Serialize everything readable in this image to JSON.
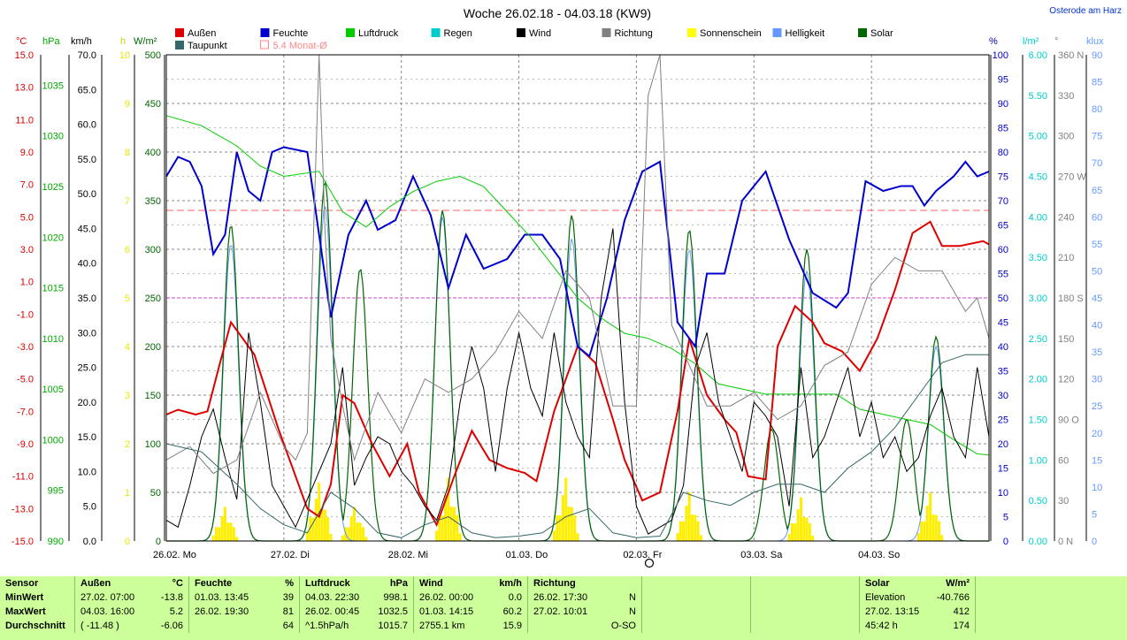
{
  "chart_data": {
    "type": "line",
    "title": "Woche 26.02.18 - 04.03.18 (KW9)",
    "location": "Osterode am Harz",
    "x_labels": [
      "26.02.  Mo",
      "27.02.  Di",
      "28.02.  Mi",
      "01.03.  Do",
      "02.03.  Fr",
      "03.03.  Sa",
      "04.03.  So"
    ],
    "legend": [
      {
        "name": "Außen",
        "color": "#dd0000"
      },
      {
        "name": "Feuchte",
        "color": "#0000cc"
      },
      {
        "name": "Luftdruck",
        "color": "#00cc00"
      },
      {
        "name": "Regen",
        "color": "#00cccc"
      },
      {
        "name": "Wind",
        "color": "#000000"
      },
      {
        "name": "Richtung",
        "color": "#808080"
      },
      {
        "name": "Sonnenschein",
        "color": "#ffff00"
      },
      {
        "name": "Helligkeit",
        "color": "#6699ff"
      },
      {
        "name": "Solar",
        "color": "#006600"
      },
      {
        "name": "Taupunkt",
        "color": "#336666"
      },
      {
        "name": "5.4 Monat-Ø",
        "color": "#ff8888"
      }
    ],
    "axes": {
      "temp_c": {
        "unit": "°C",
        "color": "#dd0000",
        "ylim": [
          -15,
          15
        ],
        "ticks": [
          "15.0",
          "13.0",
          "11.0",
          "9.0",
          "7.0",
          "5.0",
          "3.0",
          "1.0",
          "-1.0",
          "-3.0",
          "-5.0",
          "-7.0",
          "-9.0",
          "-11.0",
          "-13.0",
          "-15.0"
        ]
      },
      "pressure_hpa": {
        "unit": "hPa",
        "color": "#00aa00",
        "ticks": [
          "1035",
          "1030",
          "1025",
          "1020",
          "1015",
          "1010",
          "1005",
          "1000",
          "995",
          "990"
        ]
      },
      "wind_kmh": {
        "unit": "km/h",
        "color": "#000000",
        "ylim": [
          0,
          70
        ],
        "ticks": [
          "70.0",
          "65.0",
          "60.0",
          "55.0",
          "50.0",
          "45.0",
          "40.0",
          "35.0",
          "30.0",
          "25.0",
          "20.0",
          "15.0",
          "10.0",
          "5.0",
          "0.0"
        ]
      },
      "sun_h": {
        "unit": "h",
        "color": "#e8e800",
        "ylim": [
          0,
          10
        ],
        "ticks": [
          "10",
          "9",
          "8",
          "7",
          "6",
          "5",
          "4",
          "3",
          "2",
          "1",
          "0"
        ]
      },
      "solar_wm2": {
        "unit": "W/m²",
        "color": "#006600",
        "ylim": [
          0,
          500
        ],
        "ticks": [
          "500",
          "450",
          "400",
          "350",
          "300",
          "250",
          "200",
          "150",
          "100",
          "50",
          "0"
        ]
      },
      "humidity_pct": {
        "unit": "%",
        "color": "#0000cc",
        "ylim": [
          0,
          100
        ],
        "ticks": [
          "100",
          "95",
          "90",
          "85",
          "80",
          "75",
          "70",
          "65",
          "60",
          "55",
          "50",
          "45",
          "40",
          "35",
          "30",
          "25",
          "20",
          "15",
          "10",
          "5",
          "0"
        ]
      },
      "rain_lm2": {
        "unit": "l/m²",
        "color": "#00cccc",
        "ylim": [
          0,
          6
        ],
        "ticks": [
          "6.00",
          "5.50",
          "5.00",
          "4.50",
          "4.00",
          "3.50",
          "3.00",
          "2.50",
          "2.00",
          "1.50",
          "1.00",
          "0.50",
          "0.00"
        ]
      },
      "direction_deg": {
        "unit": "°",
        "color": "#808080",
        "ylim": [
          0,
          360
        ],
        "ticks": [
          "360 N",
          "330",
          "300",
          "270 W",
          "240",
          "210",
          "180 S",
          "150",
          "120",
          "90  O",
          "60",
          "30",
          "0 N"
        ]
      },
      "klux": {
        "unit": "klux",
        "color": "#6699ff",
        "ylim": [
          0,
          90
        ],
        "ticks": [
          "90",
          "85",
          "80",
          "75",
          "70",
          "65",
          "60",
          "55",
          "50",
          "45",
          "40",
          "35",
          "30",
          "25",
          "20",
          "15",
          "10",
          "5",
          "0"
        ]
      }
    },
    "series": [
      {
        "name": "Außen",
        "unit": "°C",
        "x_days": [
          0,
          0.1,
          0.25,
          0.35,
          0.45,
          0.55,
          0.75,
          0.95,
          1.1,
          1.2,
          1.3,
          1.4,
          1.5,
          1.6,
          1.75,
          1.9,
          2.05,
          2.15,
          2.3,
          2.45,
          2.6,
          2.75,
          2.9,
          3.05,
          3.15,
          3.3,
          3.5,
          3.65,
          3.8,
          3.9,
          4.05,
          4.2,
          4.35,
          4.45,
          4.6,
          4.75,
          4.85,
          4.95,
          5.1,
          5.2,
          5.35,
          5.5,
          5.6,
          5.75,
          5.9,
          6.05,
          6.2,
          6.35,
          6.5,
          6.6,
          6.75,
          6.95,
          7.0
        ],
        "values": [
          -7.2,
          -6.9,
          -7.2,
          -7.0,
          -4.2,
          -1.5,
          -3.5,
          -8.0,
          -11.0,
          -13.0,
          -13.5,
          -11.5,
          -6.0,
          -6.5,
          -9.0,
          -11.0,
          -9.0,
          -12.0,
          -14.0,
          -11.0,
          -8.2,
          -10.0,
          -10.5,
          -10.8,
          -11.3,
          -7.0,
          -3.0,
          -4.0,
          -7.5,
          -10.0,
          -12.5,
          -12.0,
          -7.0,
          -2.5,
          -6.0,
          -7.5,
          -8.3,
          -11.0,
          -11.2,
          -3.0,
          -0.5,
          -1.5,
          -2.8,
          -3.3,
          -4.5,
          -2.5,
          0.5,
          4.0,
          4.7,
          3.2,
          3.2,
          3.5,
          3.3
        ]
      },
      {
        "name": "Feuchte",
        "unit": "%",
        "x_days": [
          0,
          0.1,
          0.2,
          0.3,
          0.4,
          0.5,
          0.6,
          0.7,
          0.8,
          0.9,
          1.0,
          1.2,
          1.4,
          1.55,
          1.7,
          1.8,
          1.95,
          2.1,
          2.25,
          2.4,
          2.55,
          2.7,
          2.9,
          3.05,
          3.2,
          3.35,
          3.5,
          3.6,
          3.75,
          3.9,
          4.05,
          4.2,
          4.35,
          4.5,
          4.6,
          4.75,
          4.9,
          5.1,
          5.3,
          5.5,
          5.7,
          5.8,
          5.95,
          6.1,
          6.25,
          6.35,
          6.45,
          6.55,
          6.7,
          6.8,
          6.9,
          7.0
        ],
        "values": [
          75,
          79,
          78,
          73,
          59,
          63,
          80,
          72,
          70,
          80,
          81,
          80,
          46,
          63,
          70,
          64,
          66,
          75,
          67,
          52,
          63,
          56,
          58,
          63,
          63,
          58,
          40,
          38,
          50,
          66,
          76,
          78,
          45,
          40,
          55,
          55,
          70,
          76,
          62,
          51,
          48,
          51,
          74,
          72,
          73,
          73,
          69,
          72,
          75,
          78,
          75,
          76
        ]
      },
      {
        "name": "Luftdruck",
        "unit": "hPa",
        "x_days": [
          0,
          0.3,
          0.6,
          0.8,
          1.0,
          1.3,
          1.5,
          1.7,
          1.9,
          2.1,
          2.3,
          2.5,
          2.7,
          2.9,
          3.1,
          3.3,
          3.5,
          3.7,
          3.9,
          4.1,
          4.3,
          4.5,
          4.7,
          4.9,
          5.1,
          5.3,
          5.5,
          5.7,
          5.9,
          6.1,
          6.3,
          6.5,
          6.7,
          6.9,
          7.0
        ],
        "values": [
          1032.0,
          1031.0,
          1029.0,
          1027.0,
          1026.0,
          1026.5,
          1022.5,
          1021.0,
          1023.0,
          1024.5,
          1025.5,
          1026.0,
          1025.0,
          1022.5,
          1020.0,
          1017.0,
          1014.0,
          1012.0,
          1010.5,
          1010.0,
          1009.0,
          1007.5,
          1005.5,
          1005.0,
          1004.5,
          1004.5,
          1004.5,
          1004.5,
          1003.0,
          1002.5,
          1002.0,
          1001.5,
          1000.0,
          998.6,
          998.5
        ]
      },
      {
        "name": "Wind",
        "unit": "km/h",
        "x_days": [
          0,
          0.1,
          0.2,
          0.3,
          0.4,
          0.5,
          0.6,
          0.7,
          0.8,
          0.9,
          1.0,
          1.1,
          1.2,
          1.3,
          1.4,
          1.5,
          1.6,
          1.7,
          1.8,
          1.9,
          2.0,
          2.1,
          2.2,
          2.3,
          2.4,
          2.5,
          2.6,
          2.7,
          2.8,
          2.9,
          3.0,
          3.1,
          3.2,
          3.3,
          3.4,
          3.5,
          3.6,
          3.7,
          3.8,
          3.9,
          4.0,
          4.1,
          4.2,
          4.3,
          4.4,
          4.5,
          4.6,
          4.7,
          4.8,
          4.9,
          5.0,
          5.1,
          5.2,
          5.3,
          5.4,
          5.5,
          5.6,
          5.7,
          5.8,
          5.9,
          6.0,
          6.1,
          6.2,
          6.3,
          6.4,
          6.5,
          6.6,
          6.7,
          6.8,
          6.9,
          7.0
        ],
        "values": [
          3,
          2,
          8,
          15,
          19,
          12,
          6,
          30,
          20,
          8,
          5,
          2,
          6,
          10,
          14,
          25,
          8,
          12,
          15,
          14,
          10,
          8,
          5,
          3,
          8,
          20,
          28,
          22,
          10,
          22,
          30,
          22,
          18,
          30,
          20,
          15,
          12,
          35,
          45,
          20,
          5,
          1,
          2,
          3,
          8,
          25,
          30,
          20,
          15,
          10,
          20,
          18,
          15,
          5,
          25,
          12,
          15,
          20,
          25,
          15,
          20,
          12,
          15,
          10,
          12,
          18,
          22,
          15,
          12,
          25,
          15
        ]
      },
      {
        "name": "Richtung",
        "unit": "°",
        "x_days": [
          0,
          0.2,
          0.4,
          0.6,
          0.8,
          1.0,
          1.1,
          1.2,
          1.3,
          1.35,
          1.4,
          1.5,
          1.6,
          1.8,
          2.0,
          2.2,
          2.4,
          2.6,
          2.8,
          3.0,
          3.2,
          3.4,
          3.6,
          3.8,
          4.0,
          4.1,
          4.2,
          4.3,
          4.5,
          4.6,
          4.8,
          5.0,
          5.2,
          5.4,
          5.6,
          5.8,
          6.0,
          6.2,
          6.4,
          6.6,
          6.8,
          6.9,
          7.0
        ],
        "values": [
          60,
          70,
          50,
          60,
          110,
          70,
          60,
          80,
          360,
          230,
          150,
          100,
          60,
          110,
          80,
          120,
          110,
          120,
          140,
          170,
          150,
          200,
          180,
          100,
          100,
          330,
          360,
          160,
          120,
          100,
          100,
          110,
          90,
          100,
          130,
          140,
          190,
          210,
          200,
          200,
          170,
          180,
          150
        ]
      },
      {
        "name": "Taupunkt",
        "unit": "°C",
        "x_days": [
          0,
          0.3,
          0.6,
          0.8,
          1.0,
          1.2,
          1.4,
          1.6,
          1.8,
          2.0,
          2.2,
          2.4,
          2.6,
          2.8,
          3.0,
          3.2,
          3.4,
          3.6,
          3.8,
          4.0,
          4.2,
          4.4,
          4.6,
          4.8,
          5.0,
          5.2,
          5.4,
          5.6,
          5.8,
          6.0,
          6.2,
          6.4,
          6.6,
          6.8,
          7.0
        ],
        "values": [
          -9.0,
          -9.5,
          -11.5,
          -13.0,
          -14.0,
          -14.5,
          -12.0,
          -13.0,
          -14.5,
          -14.8,
          -14.0,
          -13.5,
          -14.5,
          -14.8,
          -14.7,
          -14.5,
          -13.5,
          -13.0,
          -14.5,
          -14.8,
          -14.7,
          -12.0,
          -12.5,
          -12.8,
          -12.0,
          -11.5,
          -11.5,
          -12.0,
          -10.5,
          -9.5,
          -8.0,
          -6.0,
          -4.0,
          -3.5,
          -3.5
        ]
      }
    ],
    "bell_series": {
      "Solar": {
        "unit": "W/m²",
        "peaks": [
          [
            0.55,
            325
          ],
          [
            1.35,
            370
          ],
          [
            1.65,
            280
          ],
          [
            2.35,
            340
          ],
          [
            3.45,
            335
          ],
          [
            4.45,
            320
          ],
          [
            5.15,
            115
          ],
          [
            5.45,
            300
          ],
          [
            6.3,
            125
          ],
          [
            6.55,
            210
          ]
        ]
      },
      "Helligkeit": {
        "unit": "klux",
        "peaks": [
          [
            0.55,
            55
          ],
          [
            1.35,
            62
          ],
          [
            2.35,
            60
          ],
          [
            3.45,
            56
          ],
          [
            4.45,
            54
          ],
          [
            5.45,
            50
          ],
          [
            6.55,
            36
          ]
        ]
      },
      "Sonnenschein": {
        "unit": "h",
        "peaks": [
          [
            0.5,
            0.7
          ],
          [
            1.3,
            1.2
          ],
          [
            1.6,
            0.7
          ],
          [
            2.4,
            1.3
          ],
          [
            3.4,
            1.3
          ],
          [
            4.45,
            1.0
          ],
          [
            5.4,
            0.9
          ],
          [
            6.5,
            1.0
          ]
        ]
      }
    },
    "reference_line": {
      "name": "5.4 Monat-Ø",
      "unit": "°C",
      "value": 5.4
    },
    "sun_altitude_marker": {
      "label": "Elevation"
    }
  },
  "stats": {
    "headers": [
      "Sensor",
      "Außen",
      "°C",
      "Feuchte",
      "%",
      "Luftdruck",
      "hPa",
      "Wind",
      "km/h",
      "Richtung",
      "",
      "Solar",
      "W/m²"
    ],
    "rows": [
      {
        "label": "MinWert",
        "aussen_t": "27.02.  07:00",
        "aussen_v": "-13.8",
        "feuchte_t": "01.03.  13:45",
        "feuchte_v": "39",
        "druck_t": "04.03.  22:30",
        "druck_v": "998.1",
        "wind_t": "26.02.  00:00",
        "wind_v": "0.0",
        "richt_t": "26.02.  17:30",
        "richt_v": "N",
        "solar_t": "Elevation",
        "solar_v": "-40.766"
      },
      {
        "label": "MaxWert",
        "aussen_t": "04.03.  16:00",
        "aussen_v": "5.2",
        "feuchte_t": "26.02.  19:30",
        "feuchte_v": "81",
        "druck_t": "26.02.  00:45",
        "druck_v": "1032.5",
        "wind_t": "01.03.  14:15",
        "wind_v": "60.2",
        "richt_t": "27.02.  10:01",
        "richt_v": "N",
        "solar_t": "27.02.  13:15",
        "solar_v": "412"
      },
      {
        "label": "Durchschnitt",
        "aussen_t": "( -11.48 )",
        "aussen_v": "-6.06",
        "feuchte_t": "",
        "feuchte_v": "64",
        "druck_t": "^1.5hPa/h",
        "druck_v": "1015.7",
        "wind_t": "2755.1 km",
        "wind_v": "15.9",
        "richt_t": "",
        "richt_v": "O-SO",
        "solar_t": "45:42 h",
        "solar_v": "174"
      }
    ]
  }
}
